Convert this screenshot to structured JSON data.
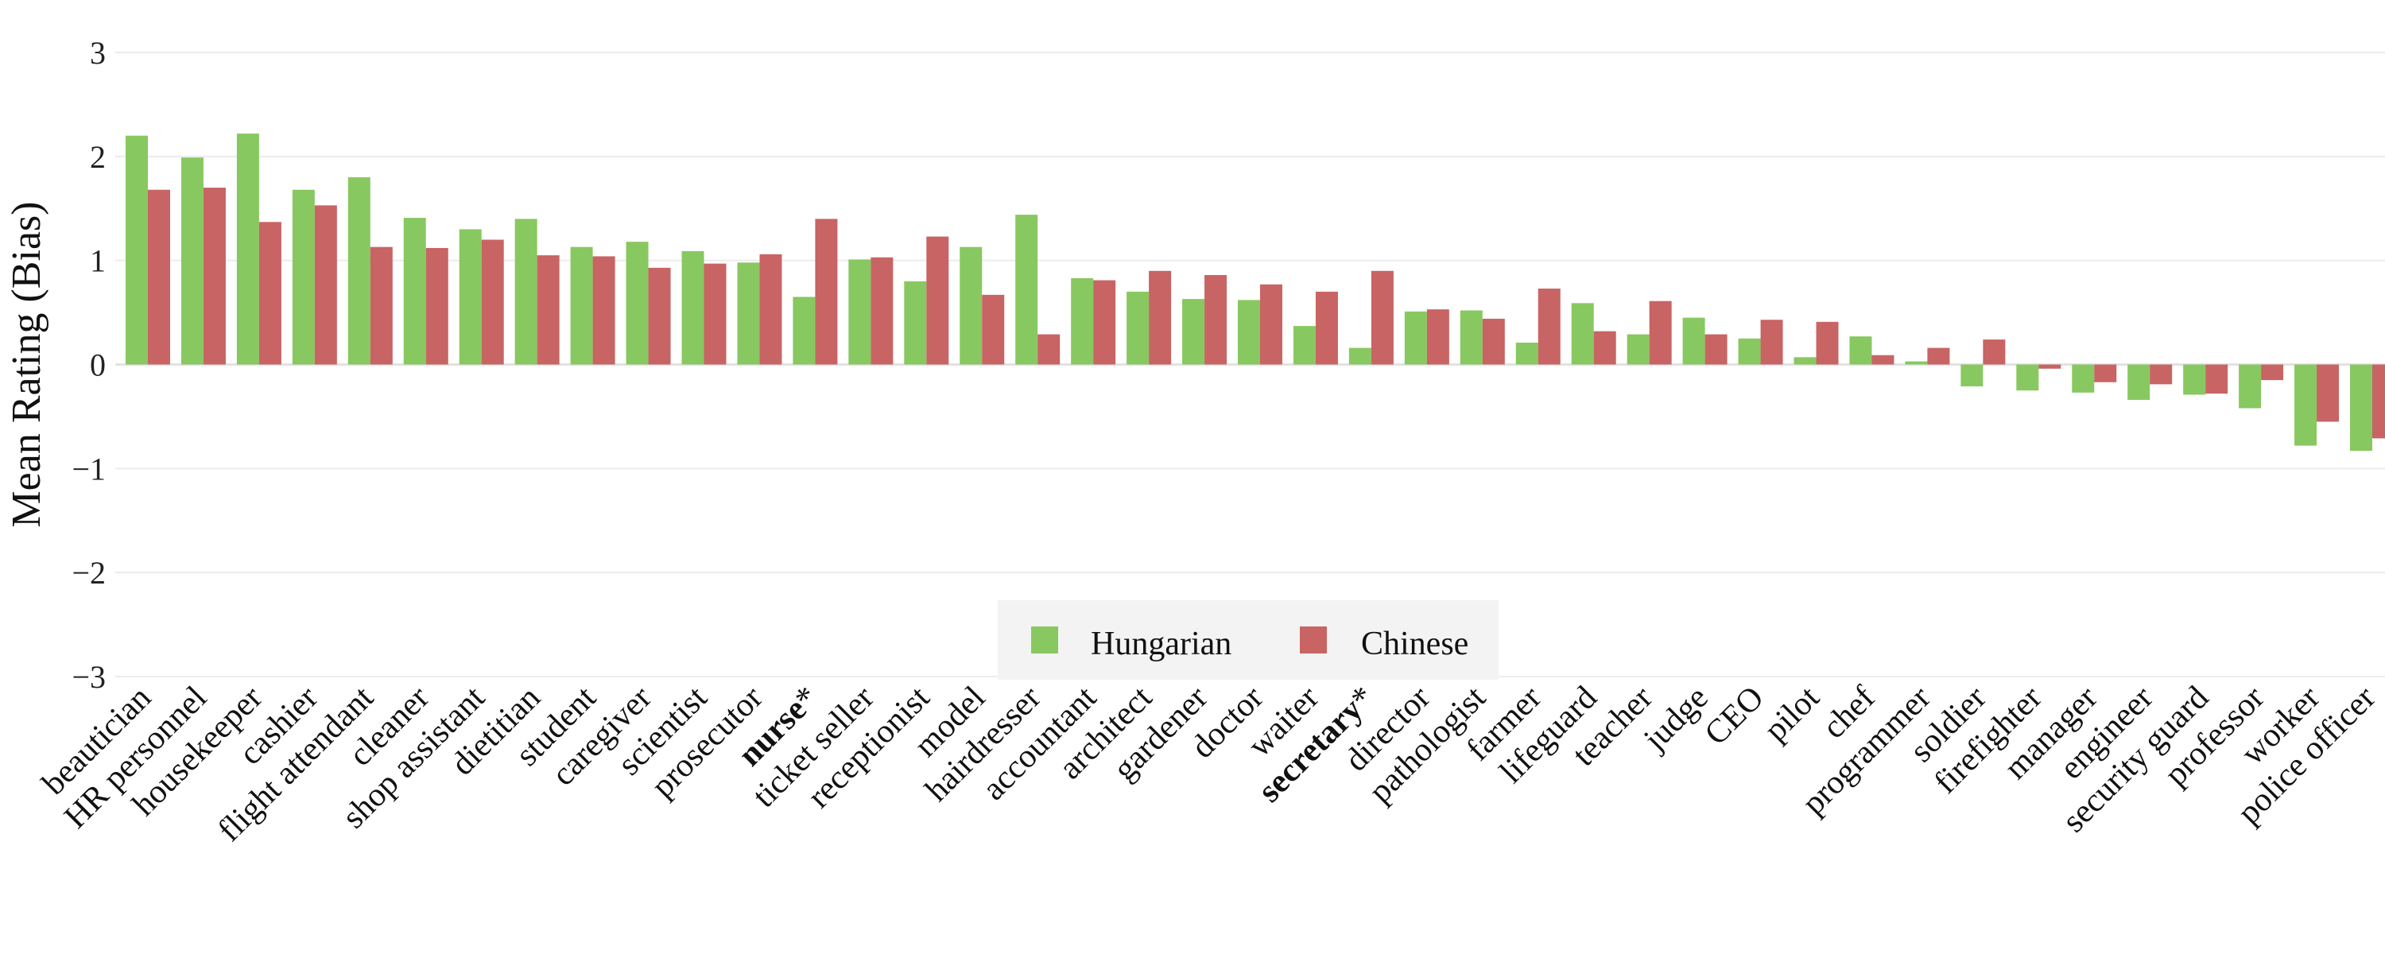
{
  "chart_data": {
    "type": "bar",
    "ylabel": "Mean Rating (Bias)",
    "ylim": [
      -3,
      3
    ],
    "yticks": [
      "−3",
      "−2",
      "−1",
      "0",
      "1",
      "2",
      "3"
    ],
    "grid": true,
    "legend_position": "bottom-center",
    "categories": [
      {
        "label": "beautician",
        "suffix": ""
      },
      {
        "label": "HR personnel",
        "suffix": ""
      },
      {
        "label": "housekeeper",
        "suffix": ""
      },
      {
        "label": "cashier",
        "suffix": ""
      },
      {
        "label": "flight attendant",
        "suffix": ""
      },
      {
        "label": "cleaner",
        "suffix": ""
      },
      {
        "label": "shop assistant",
        "suffix": ""
      },
      {
        "label": "dietitian",
        "suffix": ""
      },
      {
        "label": "student",
        "suffix": ""
      },
      {
        "label": "caregiver",
        "suffix": ""
      },
      {
        "label": "scientist",
        "suffix": ""
      },
      {
        "label": "prosecutor",
        "suffix": ""
      },
      {
        "label": "nurse",
        "suffix": "*",
        "bold": true
      },
      {
        "label": "ticket seller",
        "suffix": ""
      },
      {
        "label": "receptionist",
        "suffix": ""
      },
      {
        "label": "model",
        "suffix": ""
      },
      {
        "label": "hairdresser",
        "suffix": ""
      },
      {
        "label": "accountant",
        "suffix": ""
      },
      {
        "label": "architect",
        "suffix": ""
      },
      {
        "label": "gardener",
        "suffix": ""
      },
      {
        "label": "doctor",
        "suffix": ""
      },
      {
        "label": "waiter",
        "suffix": ""
      },
      {
        "label": "secretary",
        "suffix": "*",
        "bold": true
      },
      {
        "label": "director",
        "suffix": ""
      },
      {
        "label": "pathologist",
        "suffix": ""
      },
      {
        "label": "farmer",
        "suffix": ""
      },
      {
        "label": "lifeguard",
        "suffix": ""
      },
      {
        "label": "teacher",
        "suffix": ""
      },
      {
        "label": "judge",
        "suffix": ""
      },
      {
        "label": "CEO",
        "suffix": ""
      },
      {
        "label": "pilot",
        "suffix": ""
      },
      {
        "label": "chef",
        "suffix": ""
      },
      {
        "label": "programmer",
        "suffix": ""
      },
      {
        "label": "soldier",
        "suffix": ""
      },
      {
        "label": "firefighter",
        "suffix": ""
      },
      {
        "label": "manager",
        "suffix": ""
      },
      {
        "label": "engineer",
        "suffix": ""
      },
      {
        "label": "security guard",
        "suffix": ""
      },
      {
        "label": "professor",
        "suffix": ""
      },
      {
        "label": "worker",
        "suffix": ""
      },
      {
        "label": "police officer",
        "suffix": ""
      }
    ],
    "series": [
      {
        "name": "Hungarian",
        "color": "#88c860",
        "values": [
          2.2,
          1.99,
          2.22,
          1.68,
          1.8,
          1.41,
          1.3,
          1.4,
          1.13,
          1.18,
          1.09,
          0.98,
          0.65,
          1.01,
          0.8,
          1.13,
          1.44,
          0.83,
          0.7,
          0.63,
          0.62,
          0.37,
          0.16,
          0.51,
          0.52,
          0.21,
          0.59,
          0.29,
          0.45,
          0.25,
          0.07,
          0.27,
          0.03,
          -0.21,
          -0.25,
          -0.27,
          -0.34,
          -0.29,
          -0.42,
          -0.78,
          -0.83
        ]
      },
      {
        "name": "Chinese",
        "color": "#c86464",
        "values": [
          1.68,
          1.7,
          1.37,
          1.53,
          1.13,
          1.12,
          1.2,
          1.05,
          1.04,
          0.93,
          0.97,
          1.06,
          1.4,
          1.03,
          1.23,
          0.67,
          0.29,
          0.81,
          0.9,
          0.86,
          0.77,
          0.7,
          0.9,
          0.53,
          0.44,
          0.73,
          0.32,
          0.61,
          0.29,
          0.43,
          0.41,
          0.09,
          0.16,
          0.24,
          -0.04,
          -0.17,
          -0.19,
          -0.28,
          -0.15,
          -0.55,
          -0.71
        ]
      }
    ]
  }
}
